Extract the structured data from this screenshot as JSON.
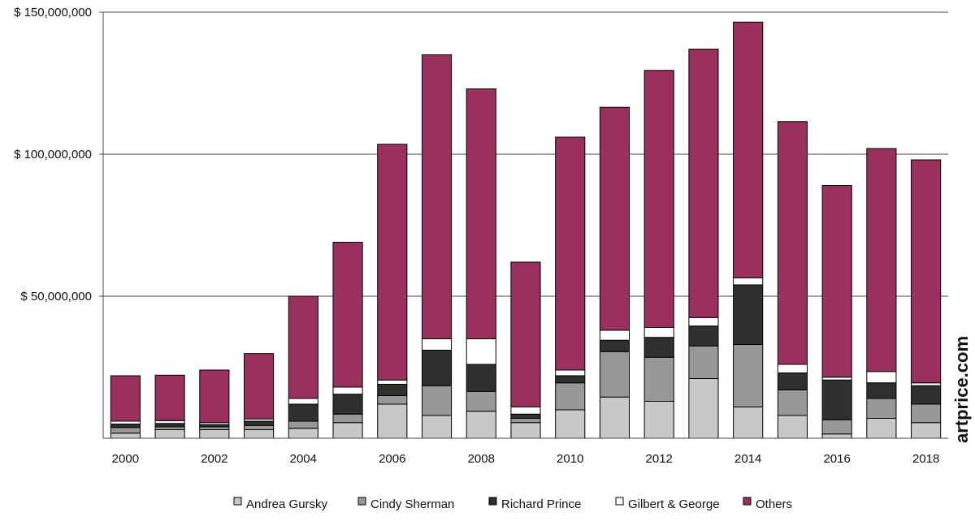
{
  "chart_data": {
    "type": "bar",
    "stacked": true,
    "title": "",
    "xlabel": "",
    "ylabel": "",
    "ylim": [
      0,
      150000000
    ],
    "y_ticks": [
      {
        "value": 50000000,
        "label": "$ 50,000,000"
      },
      {
        "value": 100000000,
        "label": "$ 100,000,000"
      },
      {
        "value": 150000000,
        "label": "$ 150,000,000"
      }
    ],
    "categories": [
      "2000",
      "2001",
      "2002",
      "2003",
      "2004",
      "2005",
      "2006",
      "2007",
      "2008",
      "2009",
      "2010",
      "2011",
      "2012",
      "2013",
      "2014",
      "2015",
      "2016",
      "2017",
      "2018"
    ],
    "x_tick_labels": [
      "2000",
      "",
      "2002",
      "",
      "2004",
      "",
      "2006",
      "",
      "2008",
      "",
      "2010",
      "",
      "2012",
      "",
      "2014",
      "",
      "2016",
      "",
      "2018"
    ],
    "grid": "horizontal",
    "legend_position": "bottom",
    "series": [
      {
        "name": "Andrea Gursky",
        "color": "#c8c8c8",
        "values": [
          1800000,
          3000000,
          3000000,
          3000000,
          3500000,
          5500000,
          12000000,
          8000000,
          9500000,
          5500000,
          10000000,
          14500000,
          13000000,
          21000000,
          11000000,
          8000000,
          1500000,
          7000000,
          5500000
        ]
      },
      {
        "name": "Cindy Sherman",
        "color": "#989898",
        "values": [
          2000000,
          1000000,
          1000000,
          1500000,
          2500000,
          3000000,
          3000000,
          10500000,
          7000000,
          1500000,
          9500000,
          16000000,
          15500000,
          11500000,
          22000000,
          9000000,
          5000000,
          7000000,
          6500000
        ]
      },
      {
        "name": "Richard Prince",
        "color": "#303030",
        "values": [
          1200000,
          1200000,
          800000,
          1500000,
          6000000,
          7000000,
          4000000,
          12500000,
          9500000,
          1500000,
          2500000,
          4000000,
          7000000,
          7000000,
          21000000,
          6000000,
          14000000,
          5500000,
          6500000
        ]
      },
      {
        "name": "Gilbert & George",
        "color": "#ffffff",
        "values": [
          1000000,
          1000000,
          700000,
          800000,
          2000000,
          2500000,
          1500000,
          4000000,
          9000000,
          2500000,
          2000000,
          3500000,
          3500000,
          3000000,
          2500000,
          3000000,
          1000000,
          4000000,
          1000000
        ]
      },
      {
        "name": "Others",
        "color": "#99305e",
        "values": [
          16000000,
          16000000,
          18500000,
          23000000,
          36000000,
          51000000,
          83000000,
          100000000,
          88000000,
          51000000,
          82000000,
          78500000,
          90500000,
          94500000,
          90000000,
          85500000,
          67500000,
          78500000,
          78500000
        ]
      }
    ]
  },
  "watermark": "artprice.com"
}
